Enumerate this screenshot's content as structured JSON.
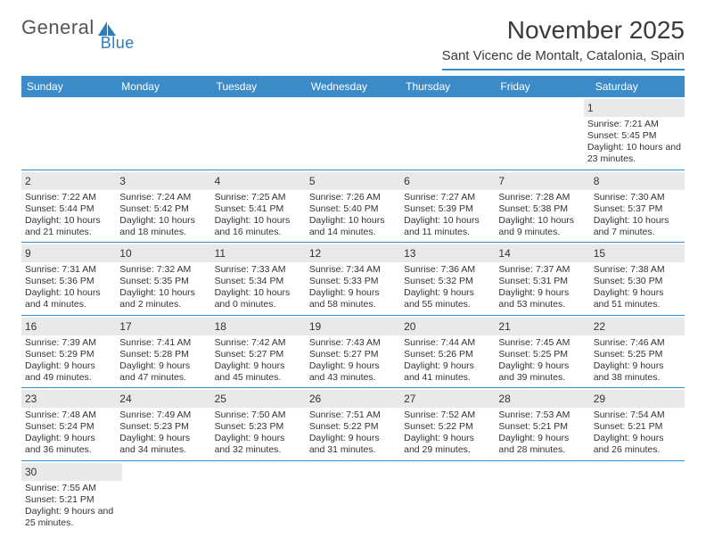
{
  "logo": {
    "text1": "General",
    "text2": "Blue"
  },
  "title": "November 2025",
  "location": "Sant Vicenc de Montalt, Catalonia, Spain",
  "colors": {
    "header_bg": "#3b8bc8",
    "header_text": "#ffffff",
    "daynum_bg": "#e9e9e9",
    "row_border": "#3b8bc8",
    "text": "#333333"
  },
  "day_headers": [
    "Sunday",
    "Monday",
    "Tuesday",
    "Wednesday",
    "Thursday",
    "Friday",
    "Saturday"
  ],
  "weeks": [
    [
      null,
      null,
      null,
      null,
      null,
      null,
      {
        "n": "1",
        "sr": "7:21 AM",
        "ss": "5:45 PM",
        "dl": "10 hours and 23 minutes."
      }
    ],
    [
      {
        "n": "2",
        "sr": "7:22 AM",
        "ss": "5:44 PM",
        "dl": "10 hours and 21 minutes."
      },
      {
        "n": "3",
        "sr": "7:24 AM",
        "ss": "5:42 PM",
        "dl": "10 hours and 18 minutes."
      },
      {
        "n": "4",
        "sr": "7:25 AM",
        "ss": "5:41 PM",
        "dl": "10 hours and 16 minutes."
      },
      {
        "n": "5",
        "sr": "7:26 AM",
        "ss": "5:40 PM",
        "dl": "10 hours and 14 minutes."
      },
      {
        "n": "6",
        "sr": "7:27 AM",
        "ss": "5:39 PM",
        "dl": "10 hours and 11 minutes."
      },
      {
        "n": "7",
        "sr": "7:28 AM",
        "ss": "5:38 PM",
        "dl": "10 hours and 9 minutes."
      },
      {
        "n": "8",
        "sr": "7:30 AM",
        "ss": "5:37 PM",
        "dl": "10 hours and 7 minutes."
      }
    ],
    [
      {
        "n": "9",
        "sr": "7:31 AM",
        "ss": "5:36 PM",
        "dl": "10 hours and 4 minutes."
      },
      {
        "n": "10",
        "sr": "7:32 AM",
        "ss": "5:35 PM",
        "dl": "10 hours and 2 minutes."
      },
      {
        "n": "11",
        "sr": "7:33 AM",
        "ss": "5:34 PM",
        "dl": "10 hours and 0 minutes."
      },
      {
        "n": "12",
        "sr": "7:34 AM",
        "ss": "5:33 PM",
        "dl": "9 hours and 58 minutes."
      },
      {
        "n": "13",
        "sr": "7:36 AM",
        "ss": "5:32 PM",
        "dl": "9 hours and 55 minutes."
      },
      {
        "n": "14",
        "sr": "7:37 AM",
        "ss": "5:31 PM",
        "dl": "9 hours and 53 minutes."
      },
      {
        "n": "15",
        "sr": "7:38 AM",
        "ss": "5:30 PM",
        "dl": "9 hours and 51 minutes."
      }
    ],
    [
      {
        "n": "16",
        "sr": "7:39 AM",
        "ss": "5:29 PM",
        "dl": "9 hours and 49 minutes."
      },
      {
        "n": "17",
        "sr": "7:41 AM",
        "ss": "5:28 PM",
        "dl": "9 hours and 47 minutes."
      },
      {
        "n": "18",
        "sr": "7:42 AM",
        "ss": "5:27 PM",
        "dl": "9 hours and 45 minutes."
      },
      {
        "n": "19",
        "sr": "7:43 AM",
        "ss": "5:27 PM",
        "dl": "9 hours and 43 minutes."
      },
      {
        "n": "20",
        "sr": "7:44 AM",
        "ss": "5:26 PM",
        "dl": "9 hours and 41 minutes."
      },
      {
        "n": "21",
        "sr": "7:45 AM",
        "ss": "5:25 PM",
        "dl": "9 hours and 39 minutes."
      },
      {
        "n": "22",
        "sr": "7:46 AM",
        "ss": "5:25 PM",
        "dl": "9 hours and 38 minutes."
      }
    ],
    [
      {
        "n": "23",
        "sr": "7:48 AM",
        "ss": "5:24 PM",
        "dl": "9 hours and 36 minutes."
      },
      {
        "n": "24",
        "sr": "7:49 AM",
        "ss": "5:23 PM",
        "dl": "9 hours and 34 minutes."
      },
      {
        "n": "25",
        "sr": "7:50 AM",
        "ss": "5:23 PM",
        "dl": "9 hours and 32 minutes."
      },
      {
        "n": "26",
        "sr": "7:51 AM",
        "ss": "5:22 PM",
        "dl": "9 hours and 31 minutes."
      },
      {
        "n": "27",
        "sr": "7:52 AM",
        "ss": "5:22 PM",
        "dl": "9 hours and 29 minutes."
      },
      {
        "n": "28",
        "sr": "7:53 AM",
        "ss": "5:21 PM",
        "dl": "9 hours and 28 minutes."
      },
      {
        "n": "29",
        "sr": "7:54 AM",
        "ss": "5:21 PM",
        "dl": "9 hours and 26 minutes."
      }
    ],
    [
      {
        "n": "30",
        "sr": "7:55 AM",
        "ss": "5:21 PM",
        "dl": "9 hours and 25 minutes."
      },
      null,
      null,
      null,
      null,
      null,
      null
    ]
  ],
  "labels": {
    "sunrise": "Sunrise: ",
    "sunset": "Sunset: ",
    "daylight": "Daylight: "
  }
}
